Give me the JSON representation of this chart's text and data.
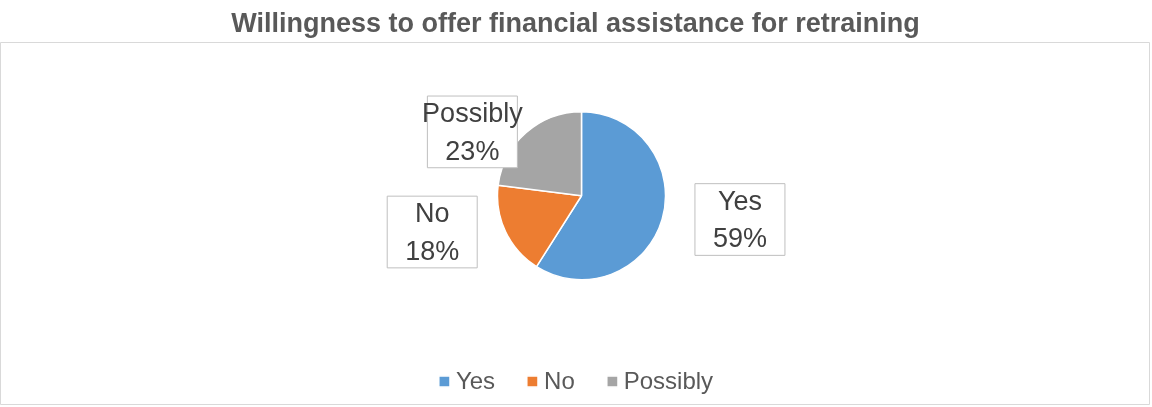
{
  "chart_data": {
    "type": "pie",
    "title": "Willingness to offer financial assistance for retraining",
    "categories": [
      "Yes",
      "No",
      "Possibly"
    ],
    "values": [
      59,
      18,
      23
    ],
    "colors": [
      "#5b9bd5",
      "#ed7d31",
      "#a5a5a5"
    ],
    "value_labels": [
      "59%",
      "18%",
      "23%"
    ],
    "legend": "bottom"
  }
}
